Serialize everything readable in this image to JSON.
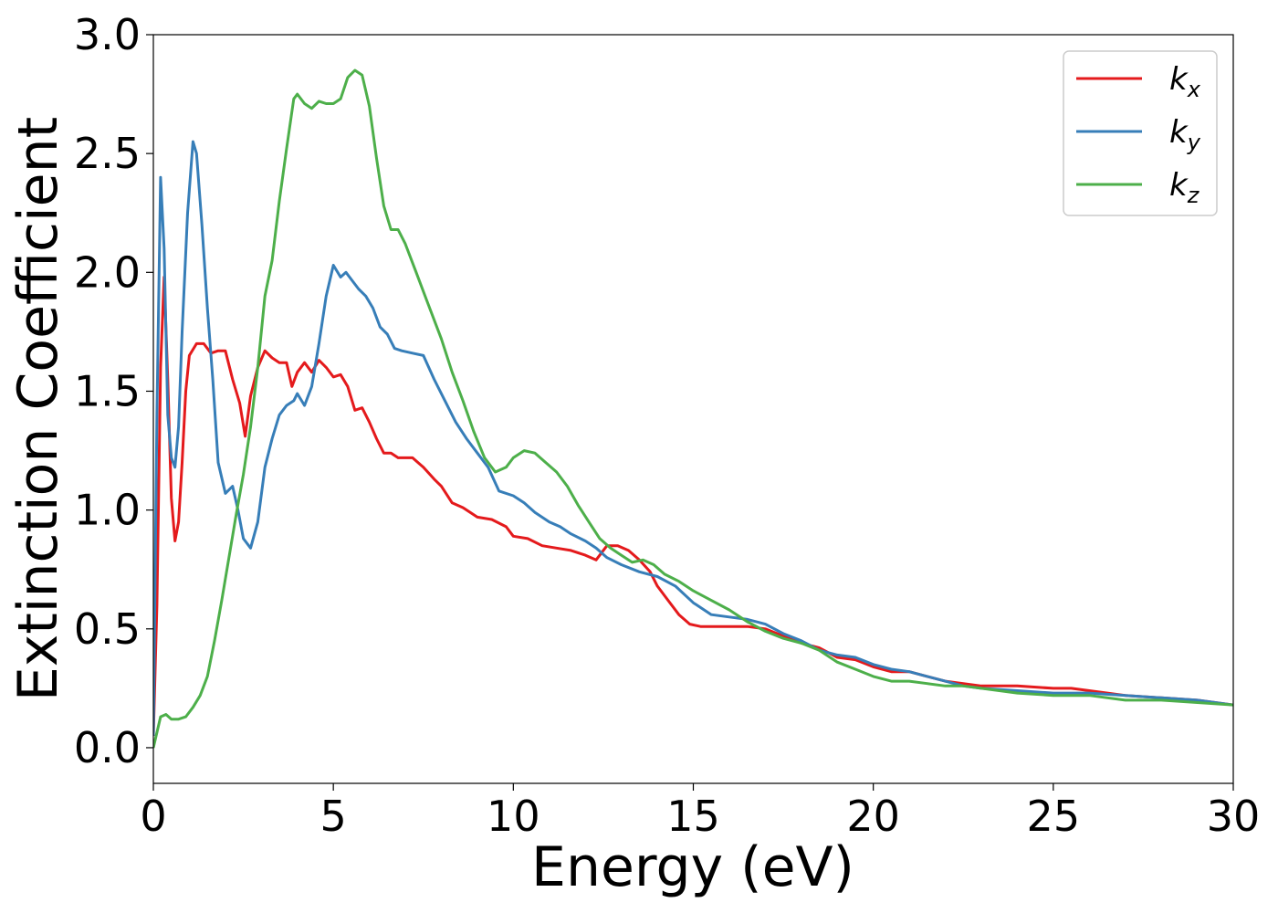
{
  "chart_data": {
    "type": "line",
    "title": "",
    "xlabel": "Energy (eV)",
    "ylabel": "Extinction Coefficient",
    "xlim": [
      0,
      30
    ],
    "ylim": [
      -0.15,
      3.0
    ],
    "xticks": [
      0,
      5,
      10,
      15,
      20,
      25,
      30
    ],
    "xtick_labels": [
      "0",
      "5",
      "10",
      "15",
      "20",
      "25",
      "30"
    ],
    "yticks": [
      0.0,
      0.5,
      1.0,
      1.5,
      2.0,
      2.5,
      3.0
    ],
    "ytick_labels": [
      "0.0",
      "0.5",
      "1.0",
      "1.5",
      "2.0",
      "2.5",
      "3.0"
    ],
    "grid": false,
    "legend_position": "top-right",
    "series": [
      {
        "name": "k",
        "subscript": "x",
        "color": "#e41a1c",
        "points": [
          [
            0,
            0.05
          ],
          [
            0.1,
            0.6
          ],
          [
            0.2,
            1.6
          ],
          [
            0.3,
            1.98
          ],
          [
            0.4,
            1.55
          ],
          [
            0.5,
            1.05
          ],
          [
            0.6,
            0.87
          ],
          [
            0.7,
            0.95
          ],
          [
            0.8,
            1.2
          ],
          [
            0.9,
            1.5
          ],
          [
            1.0,
            1.65
          ],
          [
            1.2,
            1.7
          ],
          [
            1.4,
            1.7
          ],
          [
            1.6,
            1.66
          ],
          [
            1.8,
            1.67
          ],
          [
            2.0,
            1.67
          ],
          [
            2.2,
            1.55
          ],
          [
            2.4,
            1.45
          ],
          [
            2.55,
            1.31
          ],
          [
            2.7,
            1.48
          ],
          [
            2.9,
            1.6
          ],
          [
            3.1,
            1.67
          ],
          [
            3.3,
            1.64
          ],
          [
            3.5,
            1.62
          ],
          [
            3.7,
            1.62
          ],
          [
            3.85,
            1.52
          ],
          [
            4.0,
            1.58
          ],
          [
            4.2,
            1.62
          ],
          [
            4.4,
            1.58
          ],
          [
            4.6,
            1.63
          ],
          [
            4.8,
            1.6
          ],
          [
            5.0,
            1.56
          ],
          [
            5.2,
            1.57
          ],
          [
            5.4,
            1.52
          ],
          [
            5.6,
            1.42
          ],
          [
            5.8,
            1.43
          ],
          [
            6.0,
            1.37
          ],
          [
            6.2,
            1.3
          ],
          [
            6.4,
            1.24
          ],
          [
            6.6,
            1.24
          ],
          [
            6.8,
            1.22
          ],
          [
            7.2,
            1.22
          ],
          [
            7.5,
            1.18
          ],
          [
            7.8,
            1.13
          ],
          [
            8.0,
            1.1
          ],
          [
            8.3,
            1.03
          ],
          [
            8.6,
            1.01
          ],
          [
            9.0,
            0.97
          ],
          [
            9.4,
            0.96
          ],
          [
            9.8,
            0.93
          ],
          [
            10.0,
            0.89
          ],
          [
            10.4,
            0.88
          ],
          [
            10.8,
            0.85
          ],
          [
            11.2,
            0.84
          ],
          [
            11.6,
            0.83
          ],
          [
            12.0,
            0.81
          ],
          [
            12.3,
            0.79
          ],
          [
            12.6,
            0.85
          ],
          [
            12.9,
            0.85
          ],
          [
            13.2,
            0.83
          ],
          [
            13.5,
            0.79
          ],
          [
            13.8,
            0.74
          ],
          [
            14.0,
            0.68
          ],
          [
            14.3,
            0.62
          ],
          [
            14.6,
            0.56
          ],
          [
            14.9,
            0.52
          ],
          [
            15.2,
            0.51
          ],
          [
            15.5,
            0.51
          ],
          [
            16.0,
            0.51
          ],
          [
            16.5,
            0.51
          ],
          [
            17.0,
            0.5
          ],
          [
            17.5,
            0.47
          ],
          [
            18.0,
            0.44
          ],
          [
            18.5,
            0.42
          ],
          [
            19.0,
            0.38
          ],
          [
            19.5,
            0.37
          ],
          [
            20.0,
            0.34
          ],
          [
            20.5,
            0.32
          ],
          [
            21.0,
            0.32
          ],
          [
            21.5,
            0.3
          ],
          [
            22.0,
            0.28
          ],
          [
            22.5,
            0.27
          ],
          [
            23.0,
            0.26
          ],
          [
            24.0,
            0.26
          ],
          [
            25.0,
            0.25
          ],
          [
            25.5,
            0.25
          ],
          [
            26.0,
            0.24
          ],
          [
            27.0,
            0.22
          ],
          [
            28.0,
            0.21
          ],
          [
            29.0,
            0.2
          ],
          [
            30.0,
            0.18
          ]
        ]
      },
      {
        "name": "k",
        "subscript": "y",
        "color": "#377eb8",
        "points": [
          [
            0,
            0.05
          ],
          [
            0.1,
            1.4
          ],
          [
            0.2,
            2.4
          ],
          [
            0.3,
            2.1
          ],
          [
            0.4,
            1.4
          ],
          [
            0.5,
            1.22
          ],
          [
            0.6,
            1.18
          ],
          [
            0.7,
            1.35
          ],
          [
            0.8,
            1.75
          ],
          [
            0.95,
            2.25
          ],
          [
            1.1,
            2.55
          ],
          [
            1.2,
            2.5
          ],
          [
            1.35,
            2.2
          ],
          [
            1.5,
            1.85
          ],
          [
            1.65,
            1.55
          ],
          [
            1.8,
            1.2
          ],
          [
            2.0,
            1.07
          ],
          [
            2.2,
            1.1
          ],
          [
            2.35,
            1.0
          ],
          [
            2.5,
            0.88
          ],
          [
            2.7,
            0.84
          ],
          [
            2.9,
            0.95
          ],
          [
            3.1,
            1.18
          ],
          [
            3.3,
            1.3
          ],
          [
            3.5,
            1.4
          ],
          [
            3.7,
            1.44
          ],
          [
            3.9,
            1.46
          ],
          [
            4.0,
            1.49
          ],
          [
            4.2,
            1.44
          ],
          [
            4.4,
            1.52
          ],
          [
            4.6,
            1.7
          ],
          [
            4.8,
            1.9
          ],
          [
            5.0,
            2.03
          ],
          [
            5.2,
            1.98
          ],
          [
            5.35,
            2.0
          ],
          [
            5.5,
            1.97
          ],
          [
            5.7,
            1.93
          ],
          [
            5.9,
            1.9
          ],
          [
            6.1,
            1.85
          ],
          [
            6.3,
            1.77
          ],
          [
            6.5,
            1.74
          ],
          [
            6.7,
            1.68
          ],
          [
            6.9,
            1.67
          ],
          [
            7.2,
            1.66
          ],
          [
            7.5,
            1.65
          ],
          [
            7.8,
            1.55
          ],
          [
            8.1,
            1.46
          ],
          [
            8.4,
            1.37
          ],
          [
            8.7,
            1.3
          ],
          [
            9.0,
            1.24
          ],
          [
            9.3,
            1.18
          ],
          [
            9.6,
            1.08
          ],
          [
            10.0,
            1.06
          ],
          [
            10.3,
            1.03
          ],
          [
            10.6,
            0.99
          ],
          [
            11.0,
            0.95
          ],
          [
            11.3,
            0.93
          ],
          [
            11.6,
            0.9
          ],
          [
            12.0,
            0.87
          ],
          [
            12.3,
            0.84
          ],
          [
            12.6,
            0.8
          ],
          [
            13.0,
            0.77
          ],
          [
            13.5,
            0.74
          ],
          [
            14.0,
            0.72
          ],
          [
            14.5,
            0.68
          ],
          [
            15.0,
            0.61
          ],
          [
            15.5,
            0.56
          ],
          [
            16.0,
            0.55
          ],
          [
            16.5,
            0.54
          ],
          [
            17.0,
            0.52
          ],
          [
            17.5,
            0.48
          ],
          [
            18.0,
            0.45
          ],
          [
            18.5,
            0.41
          ],
          [
            19.0,
            0.39
          ],
          [
            19.5,
            0.38
          ],
          [
            20.0,
            0.35
          ],
          [
            20.5,
            0.33
          ],
          [
            21.0,
            0.32
          ],
          [
            21.5,
            0.3
          ],
          [
            22.0,
            0.28
          ],
          [
            22.5,
            0.26
          ],
          [
            23.0,
            0.25
          ],
          [
            24.0,
            0.24
          ],
          [
            25.0,
            0.23
          ],
          [
            25.5,
            0.23
          ],
          [
            26.0,
            0.23
          ],
          [
            27.0,
            0.22
          ],
          [
            28.0,
            0.21
          ],
          [
            29.0,
            0.2
          ],
          [
            30.0,
            0.18
          ]
        ]
      },
      {
        "name": "k",
        "subscript": "z",
        "color": "#4daf4a",
        "points": [
          [
            0,
            0.0
          ],
          [
            0.2,
            0.13
          ],
          [
            0.35,
            0.14
          ],
          [
            0.5,
            0.12
          ],
          [
            0.7,
            0.12
          ],
          [
            0.9,
            0.13
          ],
          [
            1.1,
            0.17
          ],
          [
            1.3,
            0.22
          ],
          [
            1.5,
            0.3
          ],
          [
            1.7,
            0.45
          ],
          [
            1.9,
            0.62
          ],
          [
            2.1,
            0.8
          ],
          [
            2.3,
            0.98
          ],
          [
            2.5,
            1.15
          ],
          [
            2.7,
            1.35
          ],
          [
            2.9,
            1.6
          ],
          [
            3.1,
            1.9
          ],
          [
            3.3,
            2.05
          ],
          [
            3.5,
            2.3
          ],
          [
            3.7,
            2.52
          ],
          [
            3.9,
            2.73
          ],
          [
            4.0,
            2.75
          ],
          [
            4.2,
            2.71
          ],
          [
            4.4,
            2.69
          ],
          [
            4.6,
            2.72
          ],
          [
            4.8,
            2.71
          ],
          [
            5.0,
            2.71
          ],
          [
            5.2,
            2.73
          ],
          [
            5.4,
            2.82
          ],
          [
            5.6,
            2.85
          ],
          [
            5.8,
            2.83
          ],
          [
            6.0,
            2.7
          ],
          [
            6.2,
            2.48
          ],
          [
            6.4,
            2.28
          ],
          [
            6.6,
            2.18
          ],
          [
            6.8,
            2.18
          ],
          [
            7.0,
            2.12
          ],
          [
            7.3,
            2.0
          ],
          [
            7.6,
            1.88
          ],
          [
            8.0,
            1.72
          ],
          [
            8.3,
            1.58
          ],
          [
            8.6,
            1.46
          ],
          [
            8.9,
            1.33
          ],
          [
            9.2,
            1.22
          ],
          [
            9.5,
            1.16
          ],
          [
            9.8,
            1.18
          ],
          [
            10.0,
            1.22
          ],
          [
            10.3,
            1.25
          ],
          [
            10.6,
            1.24
          ],
          [
            10.9,
            1.2
          ],
          [
            11.2,
            1.16
          ],
          [
            11.5,
            1.1
          ],
          [
            11.8,
            1.02
          ],
          [
            12.1,
            0.95
          ],
          [
            12.4,
            0.88
          ],
          [
            12.7,
            0.84
          ],
          [
            13.0,
            0.81
          ],
          [
            13.3,
            0.78
          ],
          [
            13.6,
            0.79
          ],
          [
            13.9,
            0.77
          ],
          [
            14.2,
            0.73
          ],
          [
            14.6,
            0.7
          ],
          [
            15.0,
            0.66
          ],
          [
            15.5,
            0.62
          ],
          [
            16.0,
            0.58
          ],
          [
            16.5,
            0.53
          ],
          [
            17.0,
            0.49
          ],
          [
            17.5,
            0.46
          ],
          [
            18.0,
            0.44
          ],
          [
            18.5,
            0.41
          ],
          [
            19.0,
            0.36
          ],
          [
            19.5,
            0.33
          ],
          [
            20.0,
            0.3
          ],
          [
            20.5,
            0.28
          ],
          [
            21.0,
            0.28
          ],
          [
            21.5,
            0.27
          ],
          [
            22.0,
            0.26
          ],
          [
            22.5,
            0.26
          ],
          [
            23.0,
            0.25
          ],
          [
            24.0,
            0.23
          ],
          [
            25.0,
            0.22
          ],
          [
            26.0,
            0.22
          ],
          [
            27.0,
            0.2
          ],
          [
            28.0,
            0.2
          ],
          [
            29.0,
            0.19
          ],
          [
            30.0,
            0.18
          ]
        ]
      }
    ]
  }
}
